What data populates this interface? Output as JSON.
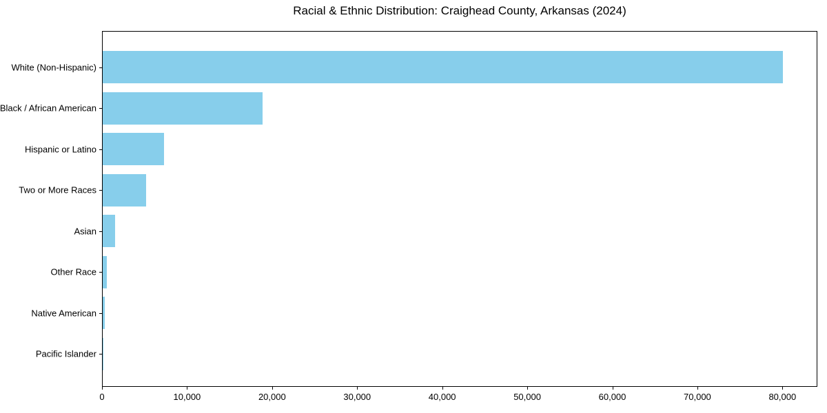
{
  "chart_data": {
    "type": "bar",
    "orientation": "horizontal",
    "title": "Racial & Ethnic Distribution: Craighead County, Arkansas (2024)",
    "categories": [
      "White (Non-Hispanic)",
      "Black / African American",
      "Hispanic or Latino",
      "Two or More Races",
      "Asian",
      "Other Race",
      "Native American",
      "Pacific Islander"
    ],
    "values": [
      80100,
      18840,
      7215,
      5140,
      1440,
      460,
      240,
      80
    ],
    "xlabel": "",
    "ylabel": "",
    "xlim": [
      0,
      84105
    ],
    "x_ticks": [
      0,
      10000,
      20000,
      30000,
      40000,
      50000,
      60000,
      70000,
      80000
    ],
    "x_tick_labels": [
      "0",
      "10,000",
      "20,000",
      "30,000",
      "40,000",
      "50,000",
      "60,000",
      "70,000",
      "80,000"
    ],
    "grid": false,
    "legend": false,
    "bar_color": "#87CEEB",
    "background_color": "#FFFFFF",
    "axis_color": "#000000"
  }
}
